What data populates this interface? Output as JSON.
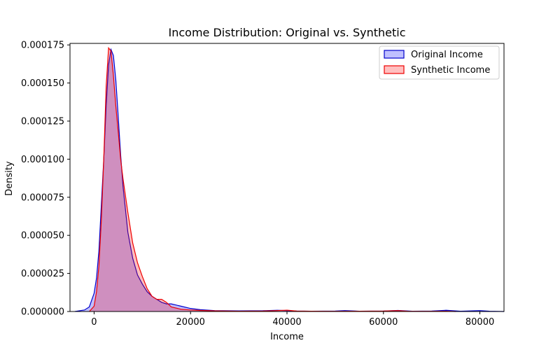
{
  "chart_data": {
    "type": "area",
    "title": "Income Distribution: Original vs. Synthetic",
    "xlabel": "Income",
    "ylabel": "Density",
    "xlim": [
      -5000,
      85000
    ],
    "ylim": [
      0,
      0.000175
    ],
    "xticks": [
      0,
      20000,
      40000,
      60000,
      80000
    ],
    "yticks": [
      0.0,
      2.5e-05,
      5e-05,
      7.5e-05,
      0.0001,
      0.000125,
      0.00015,
      0.000175
    ],
    "xtick_labels": [
      "0",
      "20000",
      "40000",
      "60000",
      "80000"
    ],
    "ytick_labels": [
      "0.000000",
      "0.000025",
      "0.000050",
      "0.000075",
      "0.000100",
      "0.000125",
      "0.000150",
      "0.000175"
    ],
    "grid": false,
    "legend_position": "top-right",
    "series": [
      {
        "name": "Original Income",
        "color": "#0000cc",
        "fill": "#0000ff",
        "x": [
          -4000,
          -2000,
          -1000,
          0,
          500,
          1000,
          1500,
          2000,
          2500,
          3000,
          3500,
          4000,
          4500,
          5000,
          5500,
          6000,
          7000,
          8000,
          9000,
          10000,
          11000,
          12000,
          13000,
          14000,
          15000,
          16000,
          18000,
          20000,
          22000,
          25000,
          30000,
          35000,
          38000,
          40000,
          42000,
          45000,
          50000,
          52000,
          55000,
          60000,
          63000,
          66000,
          70000,
          73000,
          76000,
          80000,
          82000,
          85000
        ],
        "y": [
          0.0,
          1e-06,
          3e-06,
          1.2e-05,
          2.2e-05,
          4e-05,
          7e-05,
          0.0001,
          0.000135,
          0.000162,
          0.000172,
          0.000168,
          0.000152,
          0.000128,
          0.000103,
          8.2e-05,
          5.2e-05,
          3.5e-05,
          2.4e-05,
          1.8e-05,
          1.3e-05,
          1e-05,
          8e-06,
          6e-06,
          5e-06,
          5e-06,
          3.5e-06,
          2e-06,
          1.2e-06,
          6e-07,
          4e-07,
          5e-07,
          8e-07,
          6e-07,
          3e-07,
          2e-07,
          3e-07,
          6e-07,
          2e-07,
          3e-07,
          7e-07,
          2e-07,
          3e-07,
          8e-07,
          2e-07,
          6e-07,
          2e-07,
          0.0
        ]
      },
      {
        "name": "Synthetic Income",
        "color": "#ee0000",
        "fill": "#ff0000",
        "x": [
          -1000,
          0,
          500,
          1000,
          1500,
          2000,
          2500,
          3000,
          3500,
          4000,
          4500,
          5000,
          5500,
          6000,
          7000,
          8000,
          9000,
          10000,
          11000,
          12000,
          13000,
          14000,
          15000,
          16000,
          18000,
          20000,
          22000,
          25000,
          30000,
          35000,
          38000,
          40000,
          42000,
          45000,
          50000,
          55000,
          60000,
          63000,
          65000,
          70000,
          73000,
          75000
        ],
        "y": [
          0.0,
          3.5e-06,
          1.3e-05,
          3e-05,
          6e-05,
          0.0001,
          0.000148,
          0.000173,
          0.000171,
          0.000155,
          0.000135,
          0.000118,
          0.0001,
          8.7e-05,
          6.5e-05,
          4.5e-05,
          3.2e-05,
          2.3e-05,
          1.5e-05,
          1e-05,
          8e-06,
          8e-06,
          6e-06,
          3e-06,
          1.5e-06,
          1e-06,
          7e-07,
          4e-07,
          2e-07,
          3e-07,
          6e-07,
          9e-07,
          3e-07,
          2e-07,
          1e-07,
          2e-07,
          3e-07,
          6e-07,
          2e-07,
          1e-07,
          2e-07,
          0.0
        ]
      }
    ]
  }
}
